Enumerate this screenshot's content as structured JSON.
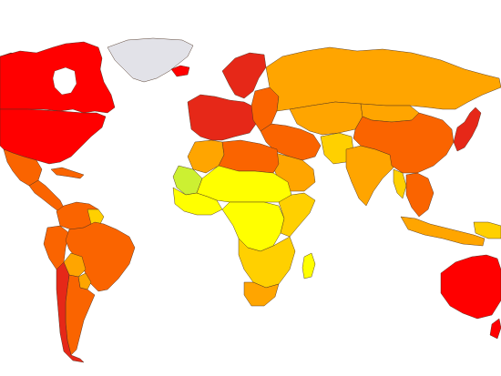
{
  "map": {
    "type": "choropleth",
    "projection": "world-robinson-like",
    "legend": null,
    "colors": {
      "background": "#ffffff",
      "border": "#4a3020",
      "no_data": "#e2e2e8",
      "very_high": "#ff0000",
      "high": "#e62818",
      "upper_middle": "#fa6400",
      "middle": "#ffa500",
      "lower_middle": "#ffd000",
      "low": "#ffff00",
      "lowest": "#ccf032"
    },
    "regions": [
      {
        "name": "greenland",
        "class": "no_data"
      },
      {
        "name": "canada",
        "class": "very_high"
      },
      {
        "name": "united-states",
        "class": "very_high"
      },
      {
        "name": "alaska",
        "class": "very_high"
      },
      {
        "name": "mexico",
        "class": "upper_middle"
      },
      {
        "name": "central-america",
        "class": "upper_middle"
      },
      {
        "name": "caribbean",
        "class": "upper_middle"
      },
      {
        "name": "venezuela-colombia",
        "class": "upper_middle"
      },
      {
        "name": "guianas",
        "class": "lower_middle"
      },
      {
        "name": "brazil",
        "class": "upper_middle"
      },
      {
        "name": "andes",
        "class": "upper_middle"
      },
      {
        "name": "bolivia",
        "class": "middle"
      },
      {
        "name": "paraguay",
        "class": "middle"
      },
      {
        "name": "argentina",
        "class": "upper_middle"
      },
      {
        "name": "chile",
        "class": "high"
      },
      {
        "name": "iceland",
        "class": "very_high"
      },
      {
        "name": "scandinavia",
        "class": "high"
      },
      {
        "name": "western-europe",
        "class": "high"
      },
      {
        "name": "eastern-europe",
        "class": "upper_middle"
      },
      {
        "name": "russia",
        "class": "middle"
      },
      {
        "name": "middle-east",
        "class": "upper_middle"
      },
      {
        "name": "arabia",
        "class": "middle"
      },
      {
        "name": "central-asia",
        "class": "middle"
      },
      {
        "name": "south-asia",
        "class": "middle"
      },
      {
        "name": "pakistan-afghanistan",
        "class": "lower_middle"
      },
      {
        "name": "china",
        "class": "upper_middle"
      },
      {
        "name": "mongolia",
        "class": "middle"
      },
      {
        "name": "japan-korea",
        "class": "high"
      },
      {
        "name": "southeast-asia",
        "class": "upper_middle"
      },
      {
        "name": "myanmar",
        "class": "lower_middle"
      },
      {
        "name": "indonesia",
        "class": "middle"
      },
      {
        "name": "new-guinea",
        "class": "lower_middle"
      },
      {
        "name": "australia",
        "class": "very_high"
      },
      {
        "name": "new-zealand",
        "class": "very_high"
      },
      {
        "name": "north-africa",
        "class": "middle"
      },
      {
        "name": "algeria-libya",
        "class": "upper_middle"
      },
      {
        "name": "sahel",
        "class": "low"
      },
      {
        "name": "mali",
        "class": "lowest"
      },
      {
        "name": "west-africa",
        "class": "low"
      },
      {
        "name": "central-africa",
        "class": "low"
      },
      {
        "name": "east-africa",
        "class": "lower_middle"
      },
      {
        "name": "southern-africa",
        "class": "lower_middle"
      },
      {
        "name": "south-africa",
        "class": "middle"
      },
      {
        "name": "madagascar",
        "class": "low"
      }
    ]
  }
}
